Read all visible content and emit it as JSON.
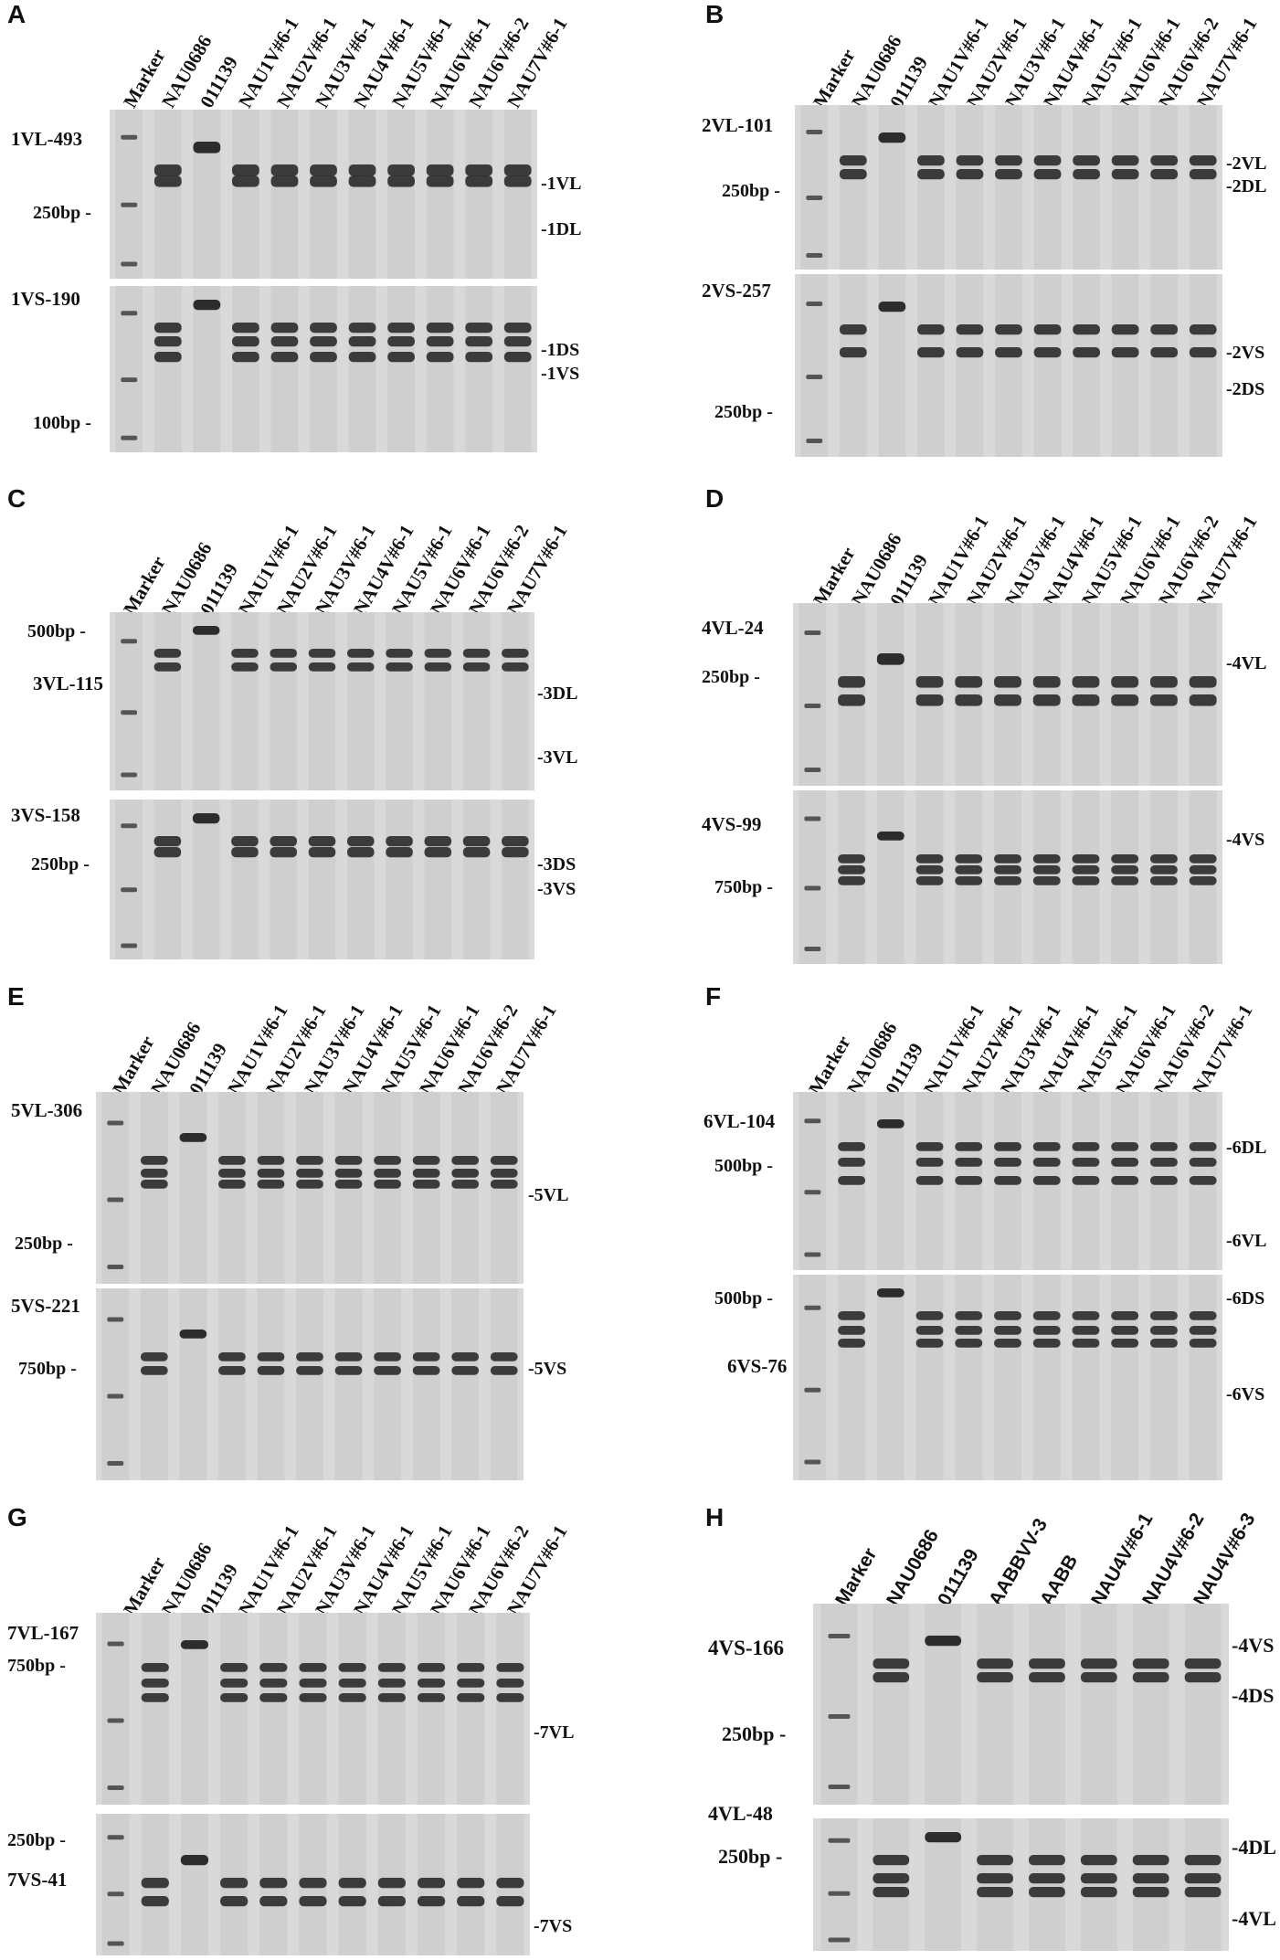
{
  "lanes_std": [
    "Marker",
    "NAU0686",
    "011139",
    "NAU1V#6-1",
    "NAU2V#6-1",
    "NAU3V#6-1",
    "NAU4V#6-1",
    "NAU5V#6-1",
    "NAU6V#6-1",
    "NAU6V#6-2",
    "NAU7V#6-1"
  ],
  "lanes_h": [
    "Marker",
    "NAU0686",
    "011139",
    "AABBVV-3",
    "AABB",
    "NAU4V#6-1",
    "NAU4V#6-2",
    "NAU4V#6-3"
  ],
  "panels": [
    {
      "letter": "A",
      "top": {
        "marker": "1VL-493",
        "size": "250bp -",
        "bands": [
          "-1VL",
          "-1DL"
        ]
      },
      "bottom": {
        "marker": "1VS-190",
        "size": "100bp -",
        "bands": [
          "-1DS",
          "-1VS"
        ]
      }
    },
    {
      "letter": "B",
      "top": {
        "marker": "2VL-101",
        "size": "250bp -",
        "bands": [
          "-2VL",
          "-2DL"
        ]
      },
      "bottom": {
        "marker": "2VS-257",
        "size": "250bp -",
        "bands": [
          "-2VS",
          "-2DS"
        ]
      }
    },
    {
      "letter": "C",
      "top": {
        "size": "500bp -",
        "marker": "3VL-115",
        "bands": [
          "-3DL",
          "-3VL"
        ]
      },
      "bottom": {
        "marker": "3VS-158",
        "size": "250bp -",
        "bands": [
          "-3DS",
          "-3VS"
        ]
      }
    },
    {
      "letter": "D",
      "top": {
        "marker": "4VL-24",
        "size": "250bp -",
        "bands": [
          "-4VL"
        ]
      },
      "bottom": {
        "marker": "4VS-99",
        "size": "750bp -",
        "bands": [
          "-4VS"
        ]
      }
    },
    {
      "letter": "E",
      "top": {
        "marker": "5VL-306",
        "size": "250bp -",
        "bands": [
          "-5VL"
        ]
      },
      "bottom": {
        "marker": "5VS-221",
        "size": "750bp -",
        "bands": [
          "-5VS"
        ]
      }
    },
    {
      "letter": "F",
      "top": {
        "marker": "6VL-104",
        "size": "500bp -",
        "bands": [
          "-6DL",
          "-6VL"
        ]
      },
      "bottom": {
        "marker": "6VS-76",
        "size": "500bp -",
        "bands": [
          "-6DS",
          "-6VS"
        ]
      }
    },
    {
      "letter": "G",
      "top": {
        "marker": "7VL-167",
        "size": "750bp -",
        "bands": [
          "-7VL"
        ]
      },
      "bottom": {
        "marker": "7VS-41",
        "size": "250bp -",
        "bands": [
          "-7VS"
        ]
      }
    },
    {
      "letter": "H",
      "top": {
        "marker": "4VS-166",
        "size": "250bp -",
        "bands": [
          "-4VS",
          "-4DS"
        ]
      },
      "bottom": {
        "marker": "4VL-48",
        "size": "250bp -",
        "bands": [
          "-4DL",
          "-4VL"
        ]
      }
    }
  ]
}
